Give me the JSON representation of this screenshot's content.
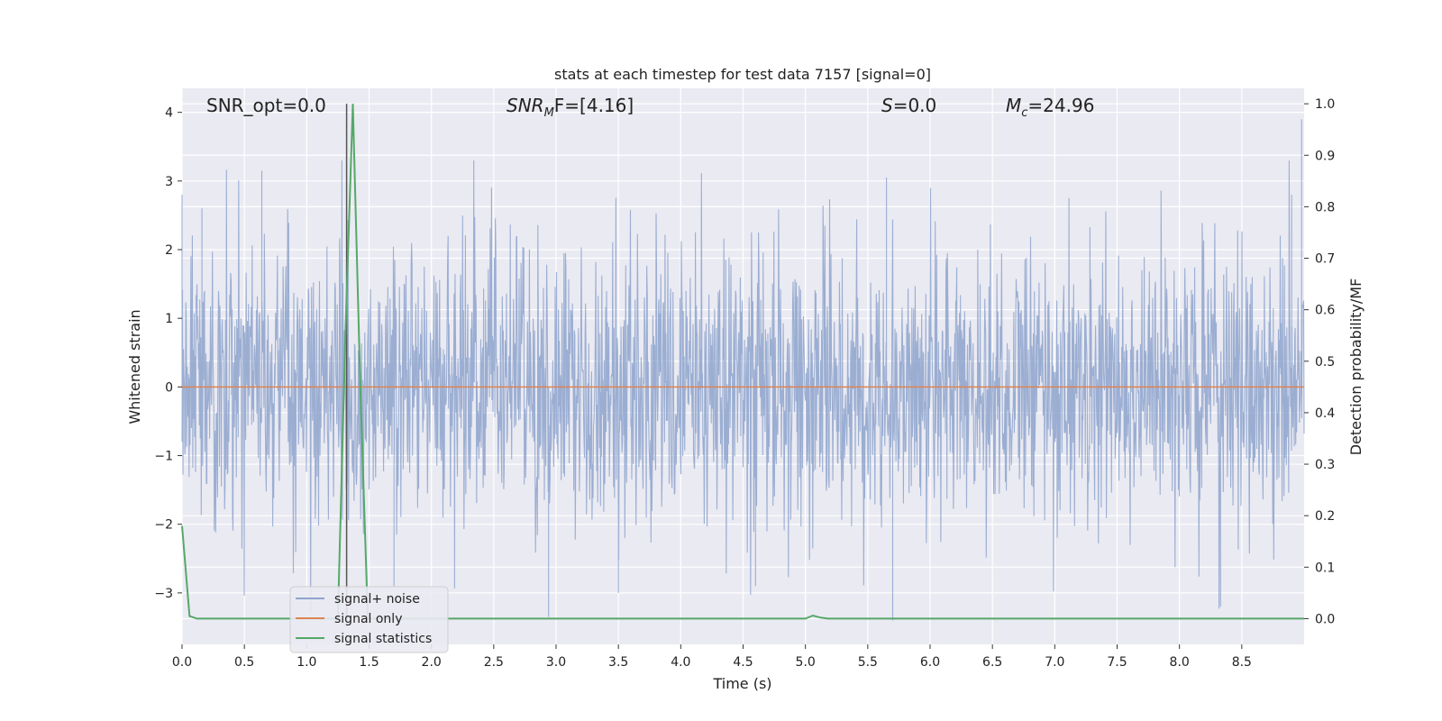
{
  "chart_data": {
    "type": "line",
    "title": "stats at each timestep for test data 7157 [signal=0]",
    "xlabel": "Time (s)",
    "ylabel": "Whitened strain",
    "ylabel_right": "Detection probability/MF",
    "xlim": [
      0.0,
      9.0
    ],
    "ylim": [
      -3.75,
      4.35
    ],
    "ylim_right": [
      -0.05,
      1.03
    ],
    "grid": true,
    "legend_placement": "lower-left",
    "x_ticks": [
      "0.0",
      "0.5",
      "1.0",
      "1.5",
      "2.0",
      "2.5",
      "3.0",
      "3.5",
      "4.0",
      "4.5",
      "5.0",
      "5.5",
      "6.0",
      "6.5",
      "7.0",
      "7.5",
      "8.0",
      "8.5"
    ],
    "y_ticks": [
      "4",
      "3",
      "2",
      "1",
      "0",
      "−1",
      "−2",
      "−3"
    ],
    "y_ticks_right": [
      "1.0",
      "0.9",
      "0.8",
      "0.7",
      "0.6",
      "0.5",
      "0.4",
      "0.3",
      "0.2",
      "0.1",
      "0.0"
    ],
    "annotations": {
      "snr_opt": "SNR_opt=0.0",
      "snr_mf_base": "SNR",
      "snr_mf_sub": "M",
      "snr_mf_rest": "F=[4.16]",
      "s_label": "S",
      "s_value": "=0.0",
      "mc_base": "M",
      "mc_sub": "c",
      "mc_value": "=24.96"
    },
    "legend": [
      "signal+ noise",
      "signal only",
      "signal statistics"
    ],
    "colors": {
      "noise": "#8da3cc",
      "signal_only": "#dd8452",
      "statistics": "#55a868",
      "marker": "#555555",
      "plot_bg": "#eaeaf2",
      "grid": "#ffffff"
    },
    "series": [
      {
        "name": "signal+ noise",
        "axis": "left",
        "note": "whitened strain, dense noise spanning about -3.4 to 4.0",
        "peaks_x": [
          0.0,
          0.16,
          0.64,
          1.7,
          2.94,
          3.5,
          4.6,
          5.08,
          5.65,
          5.7,
          8.33,
          8.9,
          8.98
        ],
        "peaks_y": [
          2.8,
          2.6,
          3.15,
          -2.9,
          -3.35,
          -3.0,
          -2.9,
          -1.2,
          3.05,
          -3.4,
          -3.2,
          2.8,
          3.9
        ]
      },
      {
        "name": "signal only",
        "axis": "left",
        "x": [
          0.0,
          9.0
        ],
        "y": [
          0.0,
          0.0
        ]
      },
      {
        "name": "signal statistics",
        "axis": "right",
        "x": [
          0.0,
          0.06,
          0.12,
          0.2,
          1.25,
          1.31,
          1.37,
          1.43,
          1.49,
          5.0,
          5.06,
          5.12,
          5.18,
          9.0
        ],
        "y": [
          0.18,
          0.005,
          0.0,
          0.0,
          0.0,
          0.55,
          1.0,
          0.45,
          0.0,
          0.0,
          0.006,
          0.002,
          0.0,
          0.0
        ]
      }
    ],
    "marker_line_x": 1.32
  }
}
